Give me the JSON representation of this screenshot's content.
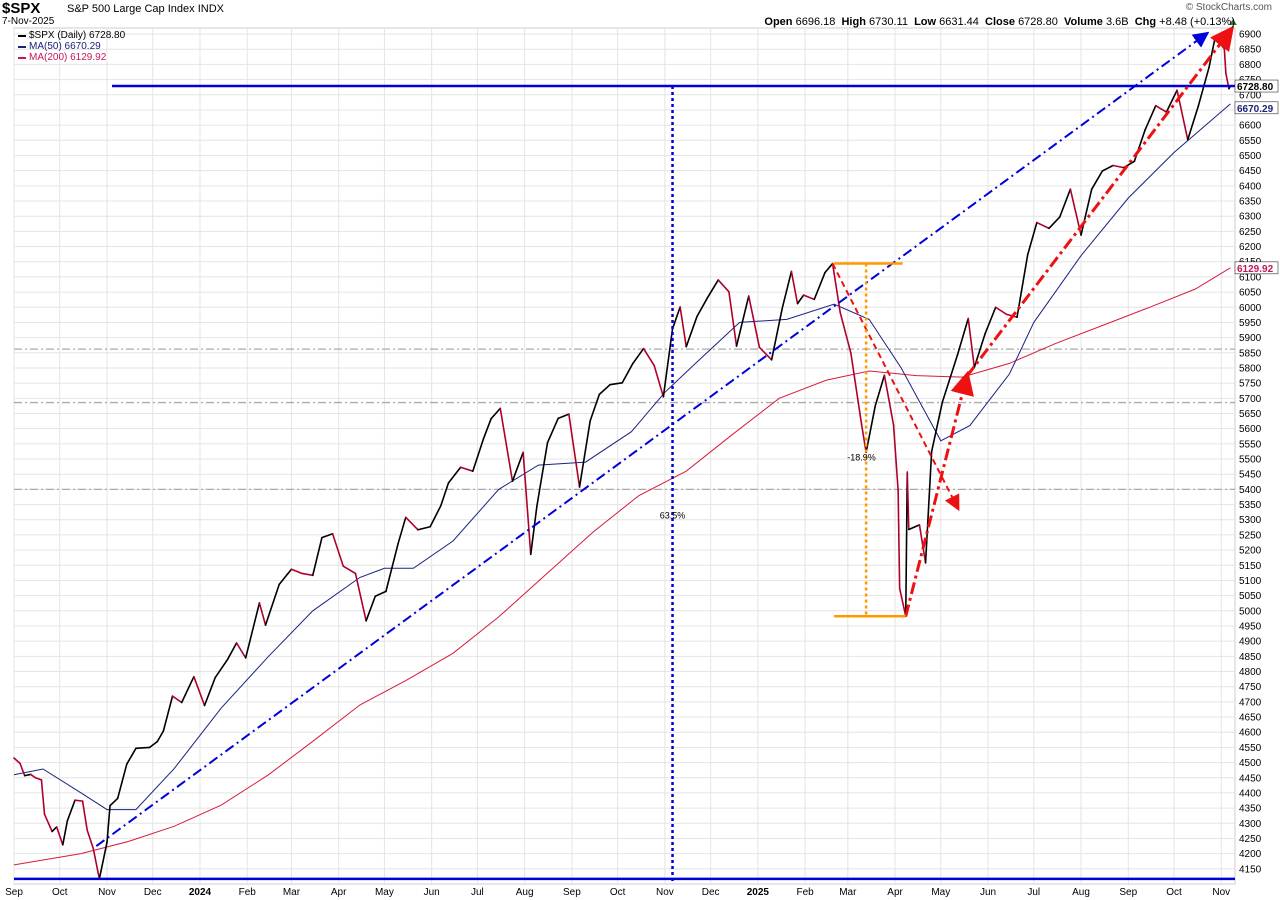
{
  "header": {
    "symbol": "$SPX",
    "name": "S&P 500 Large Cap Index",
    "exchange": "INDX",
    "date": "7-Nov-2025",
    "brand": "© StockCharts.com",
    "open_label": "Open",
    "open": "6696.18",
    "high_label": "High",
    "high": "6730.11",
    "low_label": "Low",
    "low": "6631.44",
    "close_label": "Close",
    "close": "6728.80",
    "volume_label": "Volume",
    "volume": "3.6B",
    "chg_label": "Chg",
    "chg": "+8.48 (+0.13%)"
  },
  "legend": [
    {
      "label": "$SPX (Daily) 6728.80",
      "color": "#000000"
    },
    {
      "label": "MA(50) 6670.29",
      "color": "#1a237e"
    },
    {
      "label": "MA(200) 6129.92",
      "color": "#c2185b"
    }
  ],
  "colors": {
    "price_up": "#000000",
    "price_down": "#b0002a",
    "ma50": "#1a237e",
    "ma200": "#d81b3c",
    "trend_blue": "#0000dd",
    "trend_red": "#ee1111",
    "orange": "#ff9900",
    "grid": "#e4e4e4",
    "ref_gray": "#aaaaaa"
  },
  "chart_data": {
    "type": "line",
    "title": "$SPX S&P 500 Large Cap Index INDX",
    "ylim": [
      4100,
      6920
    ],
    "yticks": [
      4150,
      4200,
      4250,
      4300,
      4350,
      4400,
      4450,
      4500,
      4550,
      4600,
      4650,
      4700,
      4750,
      4800,
      4850,
      4900,
      4950,
      5000,
      5050,
      5100,
      5150,
      5200,
      5250,
      5300,
      5350,
      5400,
      5450,
      5500,
      5550,
      5600,
      5650,
      5700,
      5750,
      5800,
      5850,
      5900,
      5950,
      6000,
      6050,
      6100,
      6150,
      6200,
      6250,
      6300,
      6350,
      6400,
      6450,
      6500,
      6550,
      6600,
      6650,
      6700,
      6750,
      6800,
      6850,
      6900
    ],
    "xticks": [
      "Sep",
      "Oct",
      "Nov",
      "Dec",
      "2024",
      "Feb",
      "Mar",
      "Apr",
      "May",
      "Jun",
      "Jul",
      "Aug",
      "Sep",
      "Oct",
      "Nov",
      "Dec",
      "2025",
      "Feb",
      "Mar",
      "Apr",
      "May",
      "Jun",
      "Jul",
      "Aug",
      "Sep",
      "Oct",
      "Nov"
    ],
    "xtick_dates": [
      "2023-09-01",
      "2023-10-01",
      "2023-11-01",
      "2023-12-01",
      "2024-01-01",
      "2024-02-01",
      "2024-03-01",
      "2024-04-01",
      "2024-05-01",
      "2024-06-01",
      "2024-07-01",
      "2024-08-01",
      "2024-09-01",
      "2024-10-01",
      "2024-11-01",
      "2024-12-01",
      "2025-01-01",
      "2025-02-01",
      "2025-03-01",
      "2025-04-01",
      "2025-05-01",
      "2025-06-01",
      "2025-07-01",
      "2025-08-01",
      "2025-09-01",
      "2025-10-01",
      "2025-11-01"
    ],
    "xlim": [
      "2023-09-01",
      "2025-11-10"
    ],
    "series": [
      {
        "name": "$SPX (Daily)",
        "points": [
          [
            "2023-09-01",
            4515
          ],
          [
            "2023-09-05",
            4497
          ],
          [
            "2023-09-08",
            4457
          ],
          [
            "2023-09-12",
            4461
          ],
          [
            "2023-09-15",
            4450
          ],
          [
            "2023-09-19",
            4443
          ],
          [
            "2023-09-21",
            4330
          ],
          [
            "2023-09-26",
            4273
          ],
          [
            "2023-09-29",
            4288
          ],
          [
            "2023-10-03",
            4229
          ],
          [
            "2023-10-06",
            4308
          ],
          [
            "2023-10-11",
            4376
          ],
          [
            "2023-10-16",
            4373
          ],
          [
            "2023-10-19",
            4278
          ],
          [
            "2023-10-23",
            4217
          ],
          [
            "2023-10-27",
            4117
          ],
          [
            "2023-11-01",
            4237
          ],
          [
            "2023-11-03",
            4358
          ],
          [
            "2023-11-08",
            4382
          ],
          [
            "2023-11-14",
            4495
          ],
          [
            "2023-11-20",
            4547
          ],
          [
            "2023-11-29",
            4550
          ],
          [
            "2023-12-04",
            4569
          ],
          [
            "2023-12-08",
            4604
          ],
          [
            "2023-12-14",
            4719
          ],
          [
            "2023-12-20",
            4698
          ],
          [
            "2023-12-28",
            4783
          ],
          [
            "2024-01-04",
            4688
          ],
          [
            "2024-01-11",
            4780
          ],
          [
            "2024-01-19",
            4839
          ],
          [
            "2024-01-25",
            4894
          ],
          [
            "2024-01-31",
            4845
          ],
          [
            "2024-02-09",
            5026
          ],
          [
            "2024-02-13",
            4953
          ],
          [
            "2024-02-22",
            5087
          ],
          [
            "2024-03-01",
            5137
          ],
          [
            "2024-03-08",
            5123
          ],
          [
            "2024-03-15",
            5117
          ],
          [
            "2024-03-21",
            5241
          ],
          [
            "2024-03-28",
            5254
          ],
          [
            "2024-04-04",
            5147
          ],
          [
            "2024-04-12",
            5123
          ],
          [
            "2024-04-19",
            4967
          ],
          [
            "2024-04-25",
            5048
          ],
          [
            "2024-05-02",
            5064
          ],
          [
            "2024-05-10",
            5222
          ],
          [
            "2024-05-15",
            5308
          ],
          [
            "2024-05-23",
            5267
          ],
          [
            "2024-05-31",
            5277
          ],
          [
            "2024-06-07",
            5346
          ],
          [
            "2024-06-12",
            5421
          ],
          [
            "2024-06-20",
            5473
          ],
          [
            "2024-06-28",
            5460
          ],
          [
            "2024-07-05",
            5567
          ],
          [
            "2024-07-10",
            5633
          ],
          [
            "2024-07-16",
            5667
          ],
          [
            "2024-07-24",
            5427
          ],
          [
            "2024-07-31",
            5522
          ],
          [
            "2024-08-05",
            5186
          ],
          [
            "2024-08-09",
            5344
          ],
          [
            "2024-08-16",
            5554
          ],
          [
            "2024-08-23",
            5634
          ],
          [
            "2024-08-30",
            5648
          ],
          [
            "2024-09-06",
            5408
          ],
          [
            "2024-09-13",
            5626
          ],
          [
            "2024-09-19",
            5713
          ],
          [
            "2024-09-26",
            5745
          ],
          [
            "2024-10-04",
            5751
          ],
          [
            "2024-10-11",
            5815
          ],
          [
            "2024-10-18",
            5864
          ],
          [
            "2024-10-25",
            5808
          ],
          [
            "2024-10-31",
            5705
          ],
          [
            "2024-11-06",
            5929
          ],
          [
            "2024-11-11",
            6001
          ],
          [
            "2024-11-15",
            5870
          ],
          [
            "2024-11-22",
            5969
          ],
          [
            "2024-11-29",
            6032
          ],
          [
            "2024-12-06",
            6090
          ],
          [
            "2024-12-13",
            6051
          ],
          [
            "2024-12-18",
            5872
          ],
          [
            "2024-12-26",
            6037
          ],
          [
            "2025-01-02",
            5868
          ],
          [
            "2025-01-10",
            5827
          ],
          [
            "2025-01-17",
            5997
          ],
          [
            "2025-01-23",
            6118
          ],
          [
            "2025-01-27",
            6012
          ],
          [
            "2025-01-31",
            6040
          ],
          [
            "2025-02-07",
            6026
          ],
          [
            "2025-02-14",
            6114
          ],
          [
            "2025-02-19",
            6144
          ],
          [
            "2025-02-24",
            5983
          ],
          [
            "2025-03-03",
            5849
          ],
          [
            "2025-03-10",
            5615
          ],
          [
            "2025-03-13",
            5522
          ],
          [
            "2025-03-19",
            5675
          ],
          [
            "2025-03-25",
            5776
          ],
          [
            "2025-03-31",
            5612
          ],
          [
            "2025-04-03",
            5397
          ],
          [
            "2025-04-04",
            5074
          ],
          [
            "2025-04-08",
            4982
          ],
          [
            "2025-04-09",
            5457
          ],
          [
            "2025-04-10",
            5268
          ],
          [
            "2025-04-17",
            5283
          ],
          [
            "2025-04-21",
            5158
          ],
          [
            "2025-04-25",
            5525
          ],
          [
            "2025-05-02",
            5687
          ],
          [
            "2025-05-12",
            5844
          ],
          [
            "2025-05-19",
            5963
          ],
          [
            "2025-05-23",
            5802
          ],
          [
            "2025-05-30",
            5912
          ],
          [
            "2025-06-06",
            6000
          ],
          [
            "2025-06-13",
            5977
          ],
          [
            "2025-06-20",
            5967
          ],
          [
            "2025-06-27",
            6173
          ],
          [
            "2025-07-03",
            6279
          ],
          [
            "2025-07-11",
            6260
          ],
          [
            "2025-07-18",
            6297
          ],
          [
            "2025-07-25",
            6389
          ],
          [
            "2025-08-01",
            6238
          ],
          [
            "2025-08-08",
            6389
          ],
          [
            "2025-08-15",
            6449
          ],
          [
            "2025-08-22",
            6467
          ],
          [
            "2025-08-29",
            6460
          ],
          [
            "2025-09-05",
            6481
          ],
          [
            "2025-09-12",
            6584
          ],
          [
            "2025-09-19",
            6664
          ],
          [
            "2025-09-26",
            6643
          ],
          [
            "2025-10-03",
            6715
          ],
          [
            "2025-10-10",
            6552
          ],
          [
            "2025-10-17",
            6664
          ],
          [
            "2025-10-24",
            6791
          ],
          [
            "2025-10-28",
            6890
          ],
          [
            "2025-11-03",
            6851
          ],
          [
            "2025-11-04",
            6771
          ],
          [
            "2025-11-06",
            6720
          ],
          [
            "2025-11-07",
            6728.8
          ]
        ]
      },
      {
        "name": "MA(50)",
        "points": [
          [
            "2023-09-01",
            4460
          ],
          [
            "2023-09-20",
            4479
          ],
          [
            "2023-10-15",
            4400
          ],
          [
            "2023-11-01",
            4345
          ],
          [
            "2023-11-20",
            4345
          ],
          [
            "2023-12-15",
            4480
          ],
          [
            "2024-01-15",
            4680
          ],
          [
            "2024-02-15",
            4850
          ],
          [
            "2024-03-15",
            5000
          ],
          [
            "2024-04-15",
            5110
          ],
          [
            "2024-05-01",
            5140
          ],
          [
            "2024-05-20",
            5140
          ],
          [
            "2024-06-15",
            5230
          ],
          [
            "2024-07-15",
            5400
          ],
          [
            "2024-08-10",
            5480
          ],
          [
            "2024-09-10",
            5490
          ],
          [
            "2024-10-10",
            5590
          ],
          [
            "2024-11-01",
            5720
          ],
          [
            "2024-11-20",
            5810
          ],
          [
            "2024-12-20",
            5950
          ],
          [
            "2025-01-20",
            5960
          ],
          [
            "2025-02-20",
            6010
          ],
          [
            "2025-03-15",
            5960
          ],
          [
            "2025-04-05",
            5800
          ],
          [
            "2025-05-01",
            5560
          ],
          [
            "2025-05-20",
            5610
          ],
          [
            "2025-06-15",
            5780
          ],
          [
            "2025-07-01",
            5950
          ],
          [
            "2025-08-01",
            6170
          ],
          [
            "2025-09-01",
            6360
          ],
          [
            "2025-10-01",
            6510
          ],
          [
            "2025-11-07",
            6670
          ]
        ]
      },
      {
        "name": "MA(200)",
        "points": [
          [
            "2023-09-01",
            4163
          ],
          [
            "2023-10-15",
            4200
          ],
          [
            "2023-11-15",
            4240
          ],
          [
            "2023-12-15",
            4290
          ],
          [
            "2024-01-15",
            4360
          ],
          [
            "2024-02-15",
            4460
          ],
          [
            "2024-03-15",
            4570
          ],
          [
            "2024-04-15",
            4690
          ],
          [
            "2024-05-15",
            4770
          ],
          [
            "2024-06-15",
            4860
          ],
          [
            "2024-07-15",
            4980
          ],
          [
            "2024-08-15",
            5120
          ],
          [
            "2024-09-15",
            5260
          ],
          [
            "2024-10-15",
            5380
          ],
          [
            "2024-11-15",
            5460
          ],
          [
            "2024-12-15",
            5580
          ],
          [
            "2025-01-15",
            5700
          ],
          [
            "2025-02-15",
            5760
          ],
          [
            "2025-03-15",
            5790
          ],
          [
            "2025-04-15",
            5775
          ],
          [
            "2025-05-15",
            5770
          ],
          [
            "2025-06-15",
            5815
          ],
          [
            "2025-07-15",
            5880
          ],
          [
            "2025-08-15",
            5940
          ],
          [
            "2025-09-15",
            6000
          ],
          [
            "2025-10-15",
            6060
          ],
          [
            "2025-11-07",
            6130
          ]
        ]
      }
    ],
    "annotations": {
      "pct_long": "63.5%",
      "pct_drop": "-18.9%",
      "close_tag": "6728.80",
      "ma50_tag": "6670.29",
      "ma200_tag": "6129.92"
    },
    "legend_position": "top-left"
  }
}
